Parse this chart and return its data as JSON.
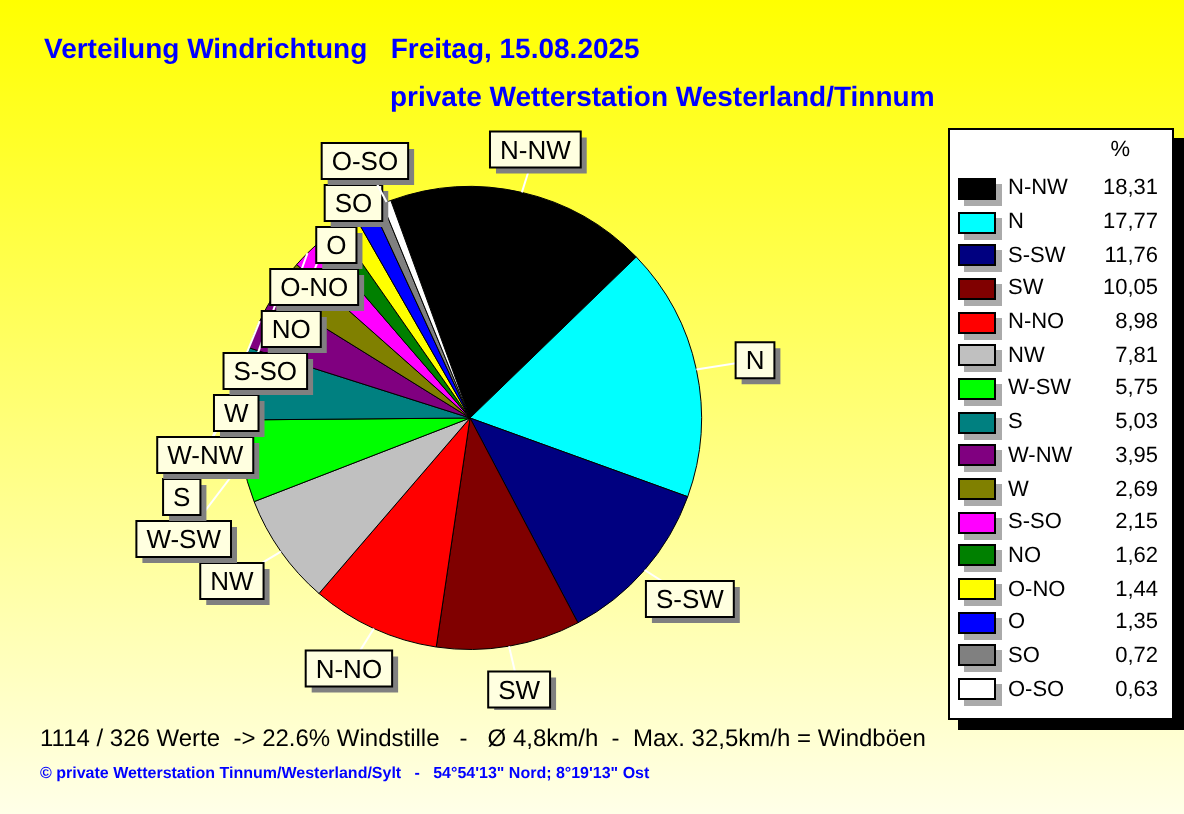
{
  "chart_data": {
    "type": "pie",
    "title": "Verteilung Windrichtung   Freitag, 15.08.2025",
    "subtitle": "private Wetterstation Westerland/Tinnum",
    "legend_title": "%",
    "legend": "right",
    "categories": [
      "N-NW",
      "N",
      "S-SW",
      "SW",
      "N-NO",
      "NW",
      "W-SW",
      "S",
      "W-NW",
      "W",
      "S-SO",
      "NO",
      "O-NO",
      "O",
      "SO",
      "O-SO"
    ],
    "values": [
      18.31,
      17.77,
      11.76,
      10.05,
      8.98,
      7.81,
      5.75,
      5.03,
      3.95,
      2.69,
      2.15,
      1.62,
      1.44,
      1.35,
      0.72,
      0.63
    ],
    "value_labels": [
      "18,31",
      "17,77",
      "11,76",
      "10,05",
      "8,98",
      "7,81",
      "5,75",
      "5,03",
      "3,95",
      "2,69",
      "2,15",
      "1,62",
      "1,44",
      "1,35",
      "0,72",
      "0,63"
    ],
    "colors": [
      "#000000",
      "#00ffff",
      "#000080",
      "#800000",
      "#ff0000",
      "#c0c0c0",
      "#00ff00",
      "#008080",
      "#800080",
      "#808000",
      "#ff00ff",
      "#008000",
      "#ffff00",
      "#0000ff",
      "#808080",
      "#ffffff"
    ],
    "annotations": [
      "1114 / 326 Werte  -> 22.6% Windstille   -   Ø 4,8km/h  -  Max. 32,5km/h = Windböen",
      "© private Wetterstation Tinnum/Westerland/Sylt   -   54°54'13\" Nord; 8°19'13\" Ost"
    ]
  }
}
